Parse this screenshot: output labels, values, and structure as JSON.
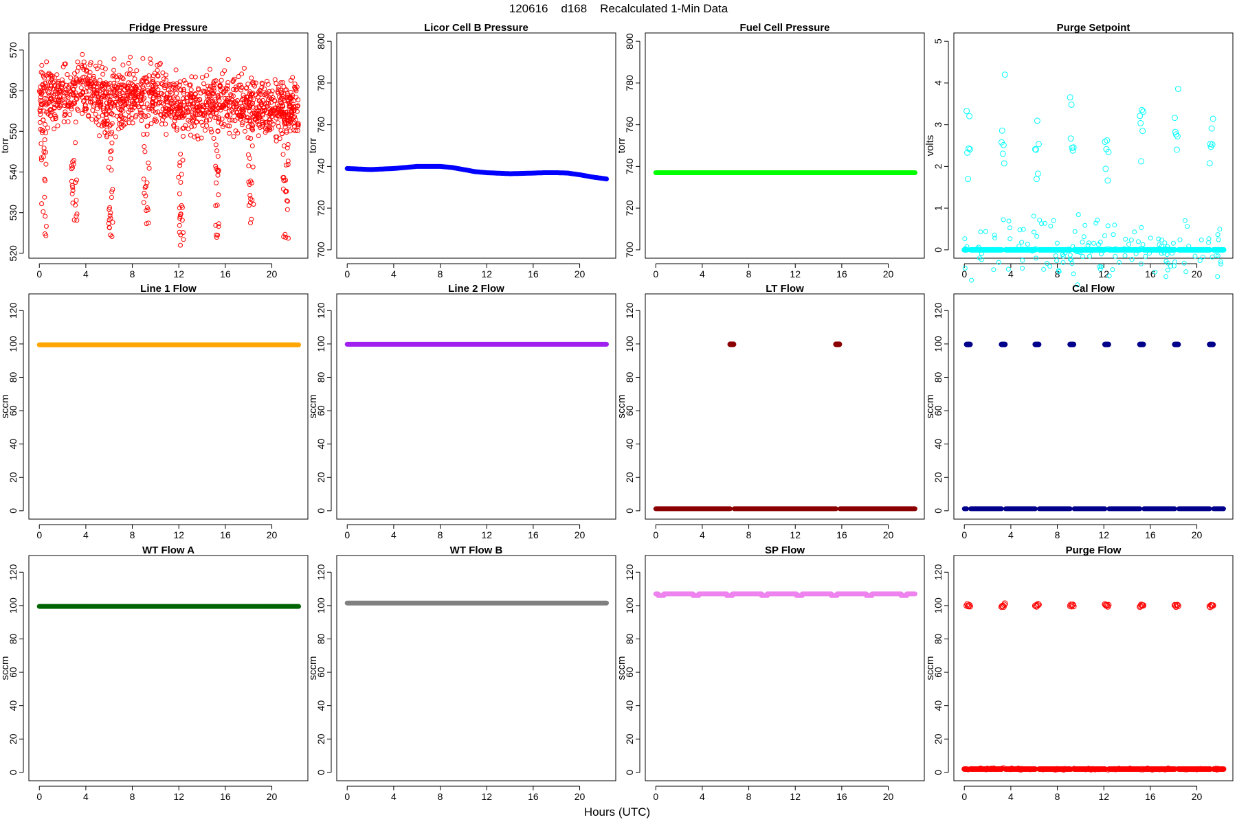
{
  "figure": {
    "title": "120616    d168    Recalculated 1-Min Data",
    "xlabel": "Hours (UTC)"
  },
  "chart_data": [
    {
      "type": "scatter",
      "title": "Fridge Pressure",
      "ylabel": "torr",
      "color": "#ff0000",
      "marker": "open-circle",
      "xlim": [
        -0.9,
        23.1
      ],
      "ylim": [
        518.8,
        574.2
      ],
      "xticks": [
        0,
        4,
        8,
        12,
        16,
        20
      ],
      "yticks": [
        520,
        530,
        540,
        550,
        560,
        570
      ],
      "description_series": {
        "baseline": [
          [
            0,
            558
          ],
          [
            2,
            559
          ],
          [
            4,
            560
          ],
          [
            6,
            557
          ],
          [
            8,
            559
          ],
          [
            10,
            559
          ],
          [
            12,
            556
          ],
          [
            14,
            556
          ],
          [
            16,
            558
          ],
          [
            18,
            557
          ],
          [
            20,
            556
          ],
          [
            22,
            555
          ]
        ],
        "spread": 5,
        "dips": [
          [
            0.3,
            524
          ],
          [
            2.9,
            527
          ],
          [
            6.1,
            522
          ],
          [
            9.1,
            527
          ],
          [
            12.1,
            521
          ],
          [
            15.1,
            523
          ],
          [
            18.1,
            526
          ],
          [
            21.1,
            523
          ]
        ]
      },
      "n_points": 1340
    },
    {
      "type": "scatter",
      "title": "Licor Cell B Pressure",
      "ylabel": "torr",
      "color": "#0000ff",
      "marker": "filled-circle",
      "xlim": [
        -0.9,
        23.1
      ],
      "ylim": [
        696,
        804
      ],
      "xticks": [
        0,
        4,
        8,
        12,
        16,
        20
      ],
      "yticks": [
        700,
        720,
        740,
        760,
        780,
        800
      ],
      "x": [
        0,
        2,
        4,
        5,
        6,
        7,
        8,
        9,
        10,
        11,
        12,
        14,
        16,
        17,
        18,
        19,
        20,
        21,
        22.3
      ],
      "values": [
        739,
        738.5,
        739,
        739.5,
        740,
        740,
        740,
        739.5,
        738.5,
        737.5,
        737,
        736.5,
        736.8,
        737,
        737,
        736.8,
        736,
        735,
        734
      ]
    },
    {
      "type": "scatter",
      "title": "Fuel Cell Pressure",
      "ylabel": "torr",
      "color": "#00ff00",
      "marker": "filled-circle",
      "xlim": [
        -0.9,
        23.1
      ],
      "ylim": [
        696,
        804
      ],
      "xticks": [
        0,
        4,
        8,
        12,
        16,
        20
      ],
      "yticks": [
        700,
        720,
        740,
        760,
        780,
        800
      ],
      "x": [
        0,
        22.3
      ],
      "values": [
        737,
        737
      ]
    },
    {
      "type": "scatter",
      "title": "Purge Setpoint",
      "ylabel": "volts",
      "color": "#00ffff",
      "marker": "open-circle",
      "xlim": [
        -0.9,
        23.1
      ],
      "ylim": [
        -0.2,
        5.2
      ],
      "xticks": [
        0,
        4,
        8,
        12,
        16,
        20
      ],
      "yticks": [
        0,
        1,
        2,
        3,
        4,
        5
      ],
      "baseline": 0,
      "peak_value": 2.6,
      "peaks_x": [
        0.2,
        3.2,
        6.1,
        9.1,
        12.1,
        15.1,
        18.1,
        21.1
      ]
    },
    {
      "type": "scatter",
      "title": "Line 1 Flow",
      "ylabel": "sccm",
      "color": "#ffa500",
      "marker": "filled-circle",
      "xlim": [
        -0.9,
        23.1
      ],
      "ylim": [
        -5,
        130
      ],
      "xticks": [
        0,
        4,
        8,
        12,
        16,
        20
      ],
      "yticks": [
        0,
        20,
        40,
        60,
        80,
        100,
        120
      ],
      "x": [
        0,
        22.3
      ],
      "values": [
        99.5,
        99.5
      ]
    },
    {
      "type": "scatter",
      "title": "Line 2 Flow",
      "ylabel": "sccm",
      "color": "#a020f0",
      "marker": "filled-circle",
      "xlim": [
        -0.9,
        23.1
      ],
      "ylim": [
        -5,
        130
      ],
      "xticks": [
        0,
        4,
        8,
        12,
        16,
        20
      ],
      "yticks": [
        0,
        20,
        40,
        60,
        80,
        100,
        120
      ],
      "x": [
        0,
        22.3
      ],
      "values": [
        99.8,
        99.8
      ]
    },
    {
      "type": "scatter",
      "title": "LT Flow",
      "ylabel": "sccm",
      "color": "#8b0000",
      "marker": "filled-circle",
      "xlim": [
        -0.9,
        23.1
      ],
      "ylim": [
        -5,
        130
      ],
      "xticks": [
        0,
        4,
        8,
        12,
        16,
        20
      ],
      "yticks": [
        0,
        20,
        40,
        60,
        80,
        100,
        120
      ],
      "baseline": 1.2,
      "peak_value": 99.8,
      "peaks_x": [
        6.4,
        15.5
      ]
    },
    {
      "type": "scatter",
      "title": "Cal Flow",
      "ylabel": "sccm",
      "color": "#00008b",
      "marker": "filled-circle",
      "xlim": [
        -0.9,
        23.1
      ],
      "ylim": [
        -5,
        130
      ],
      "xticks": [
        0,
        4,
        8,
        12,
        16,
        20
      ],
      "yticks": [
        0,
        20,
        40,
        60,
        80,
        100,
        120
      ],
      "baseline": 1.2,
      "peak_value": 99.7,
      "peaks_x": [
        0.2,
        3.2,
        6.1,
        9.1,
        12.1,
        15.1,
        18.1,
        21.1
      ]
    },
    {
      "type": "scatter",
      "title": "WT Flow A",
      "ylabel": "sccm",
      "color": "#006400",
      "marker": "filled-circle",
      "xlim": [
        -0.9,
        23.1
      ],
      "ylim": [
        -5,
        130
      ],
      "xticks": [
        0,
        4,
        8,
        12,
        16,
        20
      ],
      "yticks": [
        0,
        20,
        40,
        60,
        80,
        100,
        120
      ],
      "x": [
        0,
        22.3
      ],
      "values": [
        99.5,
        99.5
      ]
    },
    {
      "type": "scatter",
      "title": "WT Flow B",
      "ylabel": "sccm",
      "color": "#808080",
      "marker": "filled-circle",
      "xlim": [
        -0.9,
        23.1
      ],
      "ylim": [
        -5,
        130
      ],
      "xticks": [
        0,
        4,
        8,
        12,
        16,
        20
      ],
      "yticks": [
        0,
        20,
        40,
        60,
        80,
        100,
        120
      ],
      "x": [
        0,
        22.3
      ],
      "values": [
        101.5,
        101.5
      ]
    },
    {
      "type": "scatter",
      "title": "SP Flow",
      "ylabel": "sccm",
      "color": "#ee82ee",
      "marker": "filled-circle",
      "xlim": [
        -0.9,
        23.1
      ],
      "ylim": [
        -5,
        130
      ],
      "xticks": [
        0,
        4,
        8,
        12,
        16,
        20
      ],
      "yticks": [
        0,
        20,
        40,
        60,
        80,
        100,
        120
      ],
      "baseline": 107,
      "dip_value": 106,
      "dips_x": [
        0.2,
        3.2,
        6.1,
        9.1,
        12.1,
        15.1,
        18.1,
        21.1
      ]
    },
    {
      "type": "scatter",
      "title": "Purge Flow",
      "ylabel": "sccm",
      "color": "#ff0000",
      "marker": "open-circle",
      "xlim": [
        -0.9,
        23.1
      ],
      "ylim": [
        -5,
        130
      ],
      "xticks": [
        0,
        4,
        8,
        12,
        16,
        20
      ],
      "yticks": [
        0,
        20,
        40,
        60,
        80,
        100,
        120
      ],
      "baseline": 2,
      "peak_value": 100,
      "peaks_x": [
        0.2,
        3.2,
        6.1,
        9.1,
        12.1,
        15.1,
        18.1,
        21.1
      ]
    }
  ]
}
